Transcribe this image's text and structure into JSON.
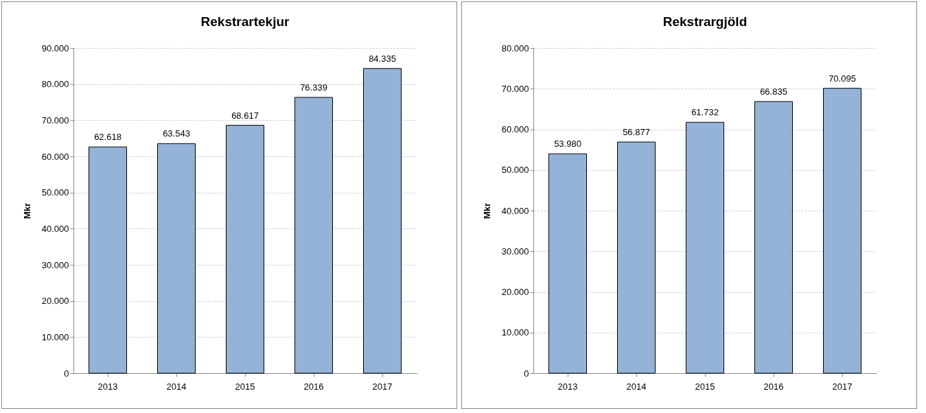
{
  "chart_data": [
    {
      "type": "bar",
      "title": "Rekstrartekjur",
      "ylabel": "Mkr",
      "categories": [
        "2013",
        "2014",
        "2015",
        "2016",
        "2017"
      ],
      "values": [
        62618,
        63543,
        68617,
        76339,
        84335
      ],
      "value_labels": [
        "62.618",
        "63.543",
        "68.617",
        "76.339",
        "84.335"
      ],
      "color": "#95b3d7",
      "ylim": [
        0,
        90000
      ],
      "yticks": [
        {
          "value": 0,
          "label": "0"
        },
        {
          "value": 10000,
          "label": "10.000"
        },
        {
          "value": 20000,
          "label": "20.000"
        },
        {
          "value": 30000,
          "label": "30.000"
        },
        {
          "value": 40000,
          "label": "40.000"
        },
        {
          "value": 50000,
          "label": "50.000"
        },
        {
          "value": 60000,
          "label": "60.000"
        },
        {
          "value": 70000,
          "label": "70.000"
        },
        {
          "value": 80000,
          "label": "80.000"
        },
        {
          "value": 90000,
          "label": "90.000"
        }
      ],
      "grid": "y"
    },
    {
      "type": "bar",
      "title": "Rekstrargjöld",
      "ylabel": "Mkr",
      "categories": [
        "2013",
        "2014",
        "2015",
        "2016",
        "2017"
      ],
      "values": [
        53980,
        56877,
        61732,
        66835,
        70095
      ],
      "value_labels": [
        "53.980",
        "56.877",
        "61.732",
        "66.835",
        "70.095"
      ],
      "color": "#95b3d7",
      "ylim": [
        0,
        80000
      ],
      "yticks": [
        {
          "value": 0,
          "label": "0"
        },
        {
          "value": 10000,
          "label": "10.000"
        },
        {
          "value": 20000,
          "label": "20.000"
        },
        {
          "value": 30000,
          "label": "30.000"
        },
        {
          "value": 40000,
          "label": "40.000"
        },
        {
          "value": 50000,
          "label": "50.000"
        },
        {
          "value": 60000,
          "label": "60.000"
        },
        {
          "value": 70000,
          "label": "70.000"
        },
        {
          "value": 80000,
          "label": "80.000"
        }
      ],
      "grid": "y"
    }
  ]
}
